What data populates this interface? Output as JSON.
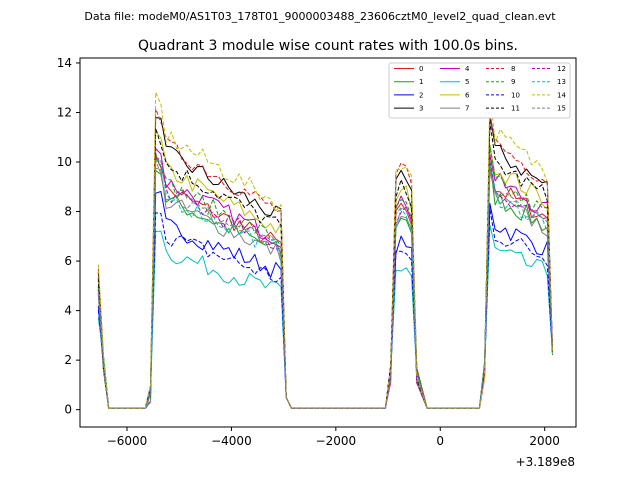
{
  "suptitle": "Data file: modeM0/AS1T03_178T01_9000003488_23606cztM0_level2_quad_clean.evt",
  "chart_data": {
    "type": "line",
    "title": "Quadrant 3 module wise count rates with 100.0s bins.",
    "xlabel": "",
    "ylabel": "",
    "offset_text": "+3.189e8",
    "xlim": [
      -6900,
      2600
    ],
    "ylim": [
      -0.7,
      14.2
    ],
    "x_ticks": [
      -6000,
      -4000,
      -2000,
      0,
      2000
    ],
    "x_tick_labels": [
      "−6000",
      "−4000",
      "−2000",
      "0",
      "2000"
    ],
    "y_ticks": [
      0,
      2,
      4,
      6,
      8,
      10,
      12,
      14
    ],
    "y_tick_labels": [
      "0",
      "2",
      "4",
      "6",
      "8",
      "10",
      "12",
      "14"
    ],
    "grid": false,
    "legend_position": "top-right",
    "legend_columns": 4,
    "segments": [
      {
        "x0": -6550,
        "n": 4,
        "shape": "decay"
      },
      {
        "x0": -5550,
        "n": 27,
        "shape": "orbit"
      },
      {
        "x0": -950,
        "n": 6,
        "shape": "short"
      },
      {
        "x0": 650,
        "n": 16,
        "shape": "orbit"
      }
    ],
    "gaps_at_zero": [
      [
        -6350,
        -5650
      ],
      [
        -2850,
        -1050
      ],
      [
        -250,
        750
      ]
    ],
    "series": [
      {
        "name": "0",
        "color": "#e41a1c",
        "dash": "solid",
        "level": 9.1
      },
      {
        "name": "1",
        "color": "#1a9e1a",
        "dash": "solid",
        "level": 8.7
      },
      {
        "name": "2",
        "color": "#0000ff",
        "dash": "solid",
        "level": 7.6
      },
      {
        "name": "3",
        "color": "#000000",
        "dash": "solid",
        "level": 10.6
      },
      {
        "name": "4",
        "color": "#c000c0",
        "dash": "solid",
        "level": 9.4
      },
      {
        "name": "5",
        "color": "#00bfbf",
        "dash": "solid",
        "level": 6.5
      },
      {
        "name": "6",
        "color": "#bfbf00",
        "dash": "solid",
        "level": 9.9
      },
      {
        "name": "7",
        "color": "#808080",
        "dash": "solid",
        "level": 8.6
      },
      {
        "name": "8",
        "color": "#e41a1c",
        "dash": "dashed",
        "level": 10.9
      },
      {
        "name": "9",
        "color": "#1a9e1a",
        "dash": "dashed",
        "level": 9.3
      },
      {
        "name": "10",
        "color": "#0000ff",
        "dash": "dashed",
        "level": 7.2
      },
      {
        "name": "11",
        "color": "#000000",
        "dash": "dashed",
        "level": 10.1
      },
      {
        "name": "12",
        "color": "#c000c0",
        "dash": "dashed",
        "level": 9.0
      },
      {
        "name": "13",
        "color": "#00bfbf",
        "dash": "dashed",
        "level": 8.8
      },
      {
        "name": "14",
        "color": "#bfbf00",
        "dash": "dashed",
        "level": 11.3
      },
      {
        "name": "15",
        "color": "#808080",
        "dash": "dashed",
        "level": 8.9
      }
    ]
  }
}
